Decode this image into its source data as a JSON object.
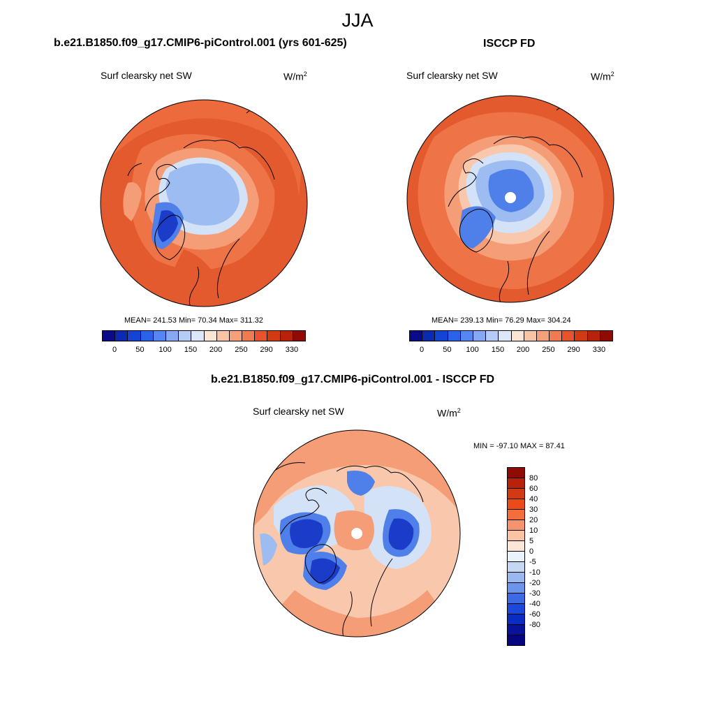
{
  "figure": {
    "season_title": "JJA"
  },
  "panels": {
    "model": {
      "title": "b.e21.B1850.f09_g17.CMIP6-piControl.001 (yrs 601-625)",
      "variable": "Surf clearsky net SW",
      "units_base": "W/m",
      "units_exp": "2",
      "stats": "MEAN= 241.53  Min=  70.34  Max= 311.32"
    },
    "obs": {
      "title": "ISCCP FD",
      "variable": "Surf clearsky net SW",
      "units_base": "W/m",
      "units_exp": "2",
      "stats": "MEAN= 239.13  Min=  76.29  Max= 304.24"
    },
    "diff": {
      "title": "b.e21.B1850.f09_g17.CMIP6-piControl.001 - ISCCP FD",
      "variable": "Surf clearsky net SW",
      "units_base": "W/m",
      "units_exp": "2",
      "stats": "MIN = -97.10 MAX =  87.41"
    }
  },
  "colorbars": {
    "abs_colors": [
      "#0a0a8a",
      "#0a2bb0",
      "#1444d4",
      "#2a62ea",
      "#5586f2",
      "#86a9f4",
      "#b4ccf6",
      "#dce8fa",
      "#fbe6d6",
      "#f8c4a6",
      "#f4a07a",
      "#f07a52",
      "#e6532c",
      "#d23a14",
      "#b8220a",
      "#8e0c04"
    ],
    "abs_ticks": [
      "0",
      "50",
      "100",
      "150",
      "200",
      "250",
      "290",
      "330"
    ],
    "diff_colors": [
      "#8e0c04",
      "#b8220a",
      "#d23a14",
      "#ec4a18",
      "#f46e3c",
      "#f69470",
      "#fbc2a4",
      "#fde6d8",
      "#eaf2fb",
      "#c4d8f4",
      "#9ab8ee",
      "#6c94ea",
      "#3c6ae4",
      "#1c48dc",
      "#0a2cc0",
      "#08129a",
      "#060680"
    ],
    "diff_ticks": [
      "80",
      "60",
      "40",
      "30",
      "20",
      "10",
      "5",
      "0",
      "-5",
      "-10",
      "-20",
      "-30",
      "-40",
      "-60",
      "-80"
    ]
  },
  "map_colors": {
    "deep_blue": "#1a3cc8",
    "mid_blue": "#4f7fe8",
    "light_blue": "#9dbcf2",
    "pale_blue": "#d4e2f8",
    "white": "#ffffff",
    "pale_orange": "#f9c8ac",
    "light_orange": "#f49d76",
    "orange": "#ee7448",
    "red_orange": "#e35a2e",
    "dark_red": "#c83a16"
  }
}
